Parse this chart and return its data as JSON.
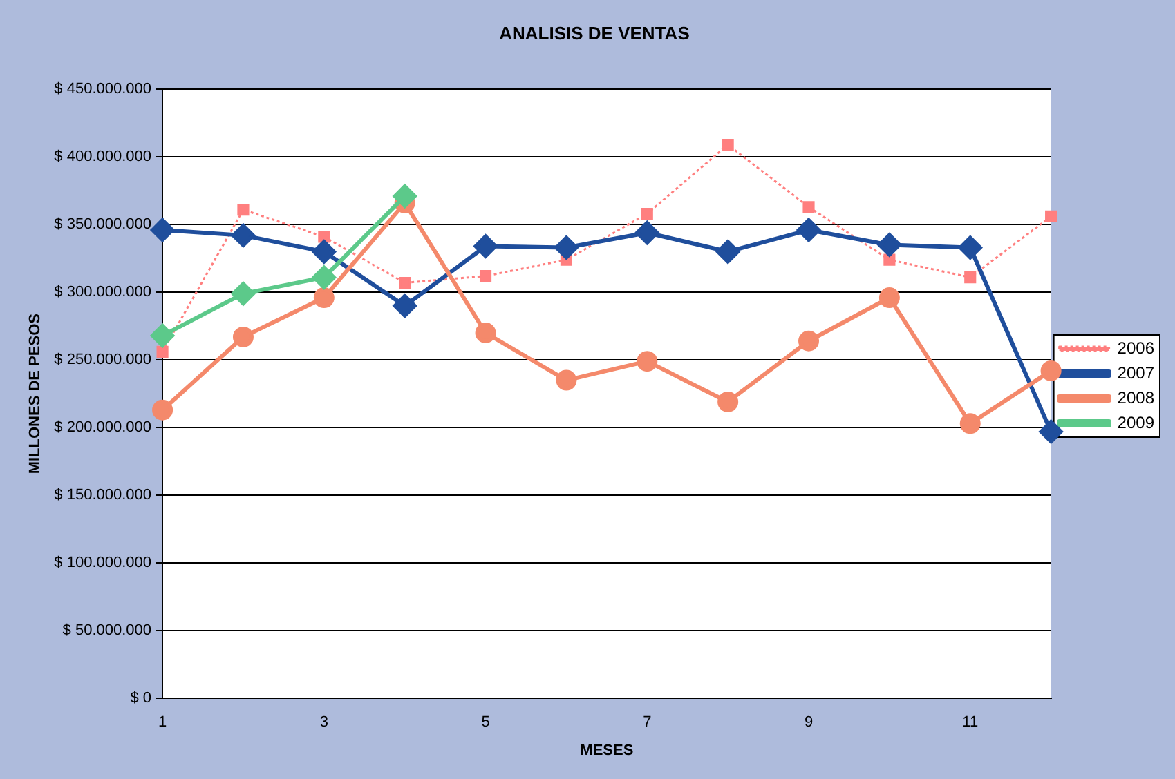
{
  "chart_data": {
    "type": "line",
    "title": "ANALISIS DE VENTAS",
    "xlabel": "MESES",
    "ylabel": "MILLONES DE PESOS",
    "x": [
      1,
      2,
      3,
      4,
      5,
      6,
      7,
      8,
      9,
      10,
      11,
      12
    ],
    "xlim": [
      1,
      12
    ],
    "xticks": [
      1,
      3,
      5,
      7,
      9,
      11
    ],
    "ylim": [
      0,
      450000000
    ],
    "yticks": [
      {
        "value": 0,
        "label": "$ 0"
      },
      {
        "value": 50000000,
        "label": "$ 50.000.000"
      },
      {
        "value": 100000000,
        "label": "$ 100.000.000"
      },
      {
        "value": 150000000,
        "label": "$ 150.000.000"
      },
      {
        "value": 200000000,
        "label": "$ 200.000.000"
      },
      {
        "value": 250000000,
        "label": "$ 250.000.000"
      },
      {
        "value": 300000000,
        "label": "$ 300.000.000"
      },
      {
        "value": 350000000,
        "label": "$ 350.000.000"
      },
      {
        "value": 400000000,
        "label": "$ 400.000.000"
      },
      {
        "value": 450000000,
        "label": "$ 450.000.000"
      }
    ],
    "grid": "y",
    "legend": "right",
    "series": [
      {
        "name": "2006",
        "color": "#ff7f7f",
        "marker": "square",
        "line_style": "dotted",
        "values": [
          256000000,
          361000000,
          341000000,
          307000000,
          312000000,
          324000000,
          358000000,
          409000000,
          363000000,
          324000000,
          311000000,
          356000000
        ]
      },
      {
        "name": "2007",
        "color": "#1f4e9c",
        "marker": "diamond",
        "line_style": "solid",
        "values": [
          346000000,
          342000000,
          330000000,
          290000000,
          334000000,
          333000000,
          344000000,
          330000000,
          346000000,
          335000000,
          333000000,
          197000000
        ]
      },
      {
        "name": "2008",
        "color": "#f4896b",
        "marker": "circle",
        "line_style": "solid",
        "values": [
          213000000,
          267000000,
          296000000,
          366000000,
          270000000,
          235000000,
          249000000,
          219000000,
          264000000,
          296000000,
          203000000,
          242000000
        ]
      },
      {
        "name": "2009",
        "color": "#5cc98a",
        "marker": "diamond",
        "line_style": "solid",
        "values": [
          268000000,
          299000000,
          311000000,
          371000000,
          null,
          null,
          null,
          null,
          null,
          null,
          null,
          null
        ]
      }
    ]
  }
}
